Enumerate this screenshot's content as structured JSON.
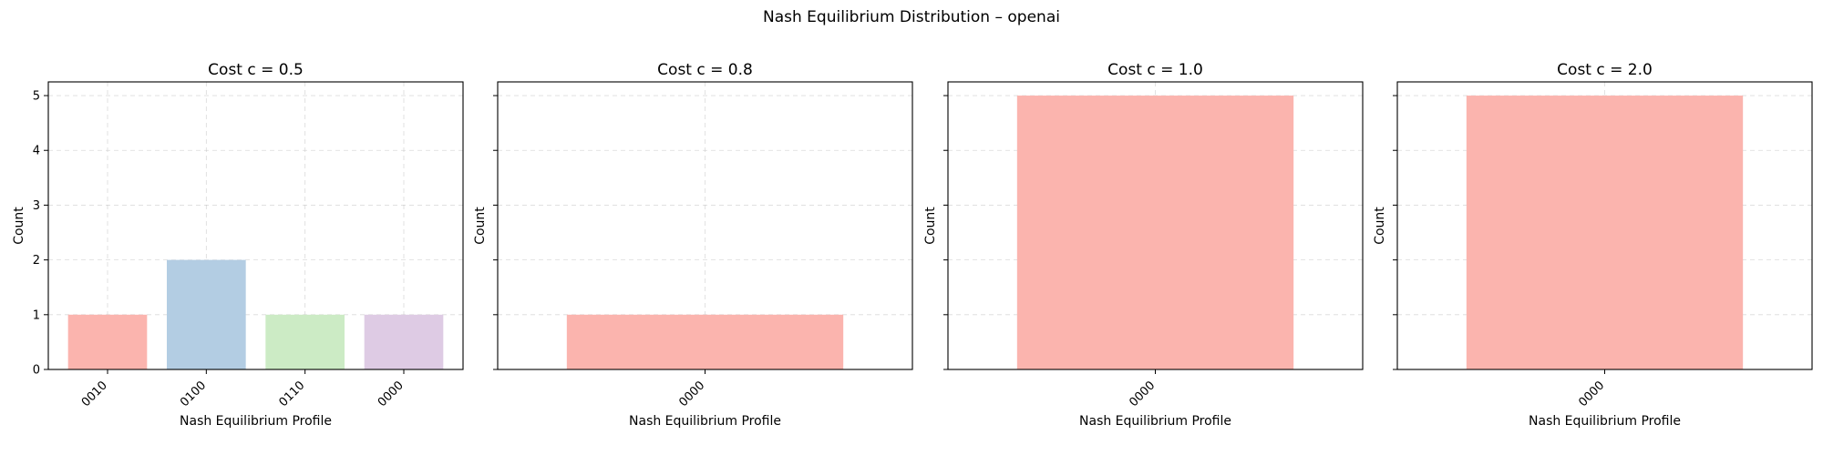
{
  "figure": {
    "suptitle": "Nash Equilibrium Distribution – openai"
  },
  "chart_data": [
    {
      "type": "bar",
      "title": "Cost c = 0.5",
      "categories": [
        "0010",
        "0100",
        "0110",
        "0000"
      ],
      "values": [
        1,
        2,
        1,
        1
      ],
      "colors": [
        "#fbb4ae",
        "#b3cde3",
        "#ccebc5",
        "#decbe4"
      ],
      "xlabel": "Nash Equilibrium Profile",
      "ylabel": "Count",
      "ylim": [
        0,
        5.25
      ],
      "yticks": [
        0,
        1,
        2,
        3,
        4,
        5
      ],
      "grid": true
    },
    {
      "type": "bar",
      "title": "Cost c = 0.8",
      "categories": [
        "0000"
      ],
      "values": [
        1
      ],
      "colors": [
        "#fbb4ae"
      ],
      "xlabel": "Nash Equilibrium Profile",
      "ylabel": "Count",
      "ylim": [
        0,
        5.25
      ],
      "yticks": [
        0,
        1,
        2,
        3,
        4,
        5
      ],
      "grid": true
    },
    {
      "type": "bar",
      "title": "Cost c = 1.0",
      "categories": [
        "0000"
      ],
      "values": [
        5
      ],
      "colors": [
        "#fbb4ae"
      ],
      "xlabel": "Nash Equilibrium Profile",
      "ylabel": "Count",
      "ylim": [
        0,
        5.25
      ],
      "yticks": [
        0,
        1,
        2,
        3,
        4,
        5
      ],
      "grid": true
    },
    {
      "type": "bar",
      "title": "Cost c = 2.0",
      "categories": [
        "0000"
      ],
      "values": [
        5
      ],
      "colors": [
        "#fbb4ae"
      ],
      "xlabel": "Nash Equilibrium Profile",
      "ylabel": "Count",
      "ylim": [
        0,
        5.25
      ],
      "yticks": [
        0,
        1,
        2,
        3,
        4,
        5
      ],
      "grid": true
    }
  ]
}
